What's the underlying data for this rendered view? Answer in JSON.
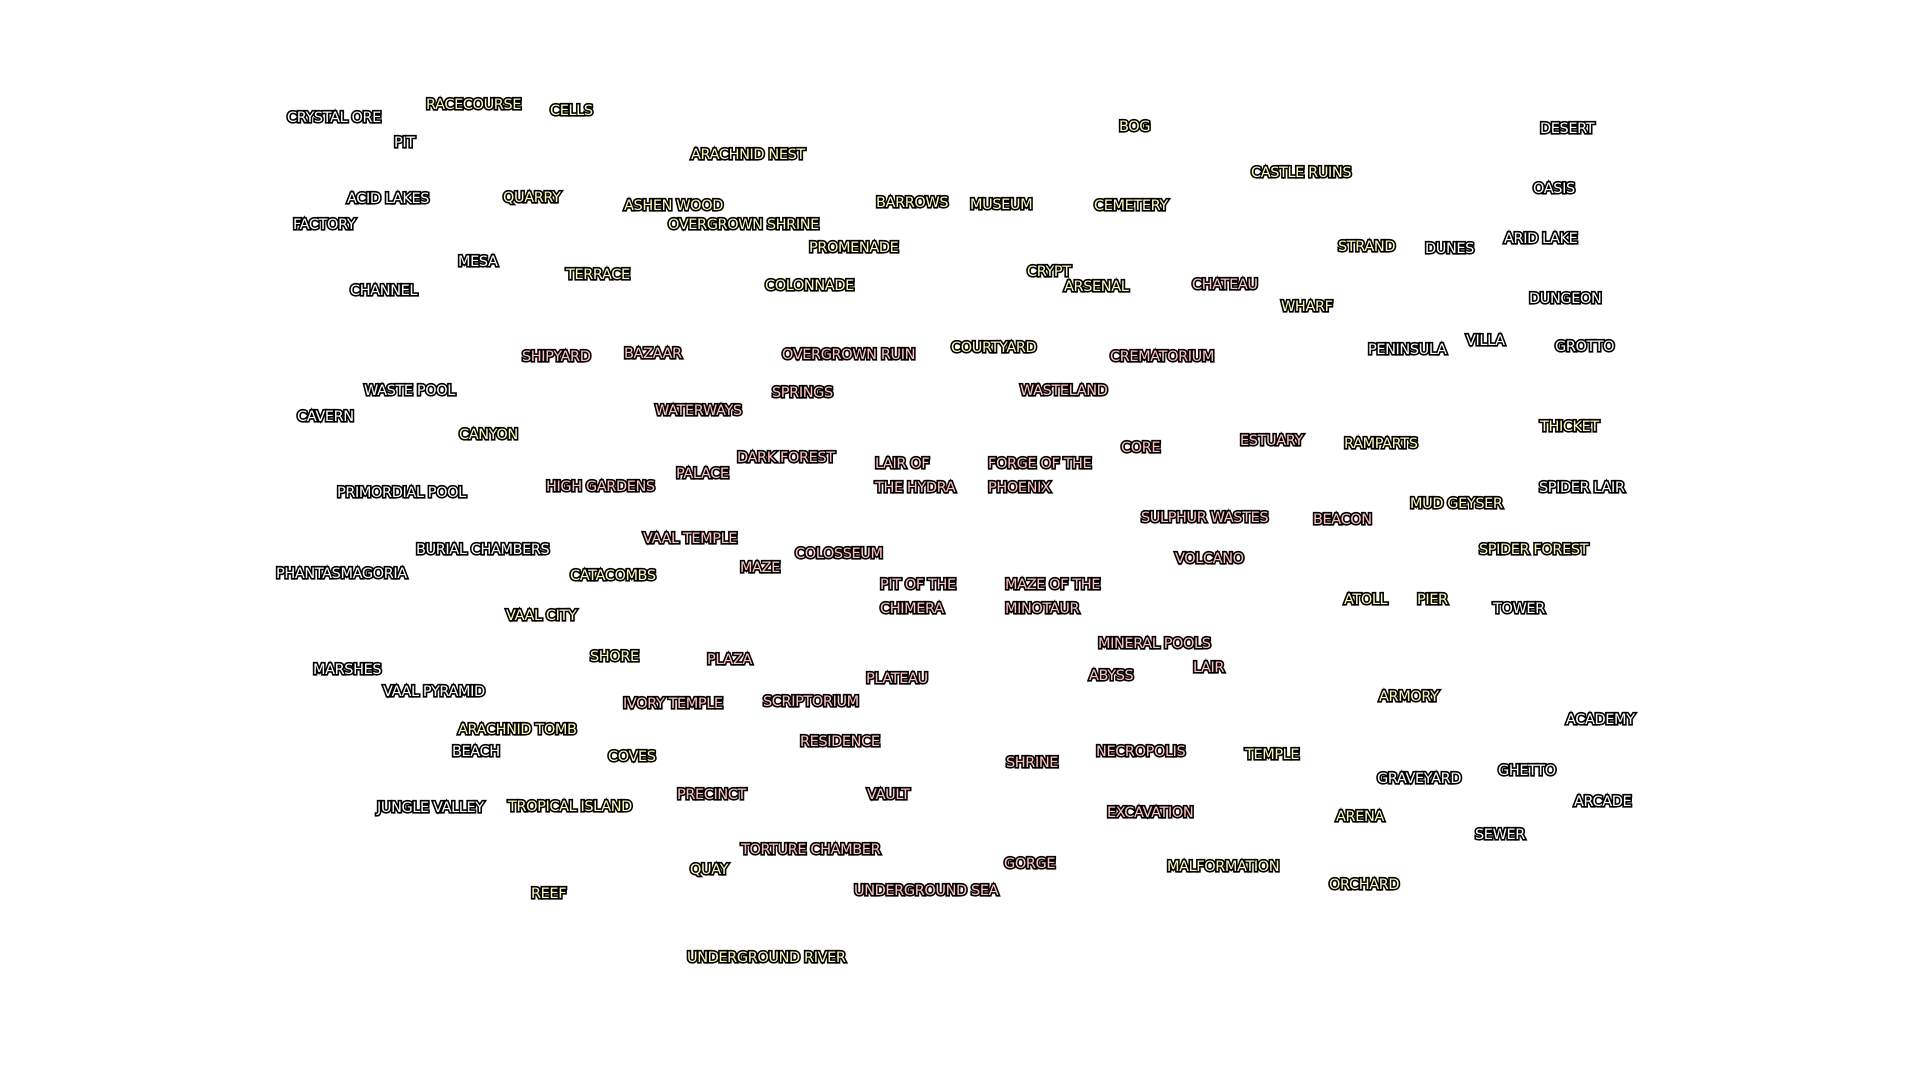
{
  "palette": {
    "tier_white": "#ffffff",
    "tier_yellow": "#fcfcbe",
    "tier_red": "#ffc4c4",
    "outline": "#000000",
    "background": "#ffffff"
  },
  "atlas": {
    "maps": [
      {
        "label": "CRYSTAL ORE",
        "tier": "white"
      },
      {
        "label": "RACECOURSE",
        "tier": "yellow"
      },
      {
        "label": "CELLS",
        "tier": "yellow"
      },
      {
        "label": "PIT",
        "tier": "white"
      },
      {
        "label": "ARACHNID NEST",
        "tier": "yellow"
      },
      {
        "label": "BOG",
        "tier": "yellow"
      },
      {
        "label": "DESERT",
        "tier": "white"
      },
      {
        "label": "ACID LAKES",
        "tier": "white"
      },
      {
        "label": "QUARRY",
        "tier": "yellow"
      },
      {
        "label": "ASHEN WOOD",
        "tier": "yellow"
      },
      {
        "label": "BARROWS",
        "tier": "yellow"
      },
      {
        "label": "MUSEUM",
        "tier": "yellow"
      },
      {
        "label": "CEMETERY",
        "tier": "yellow"
      },
      {
        "label": "CASTLE RUINS",
        "tier": "yellow"
      },
      {
        "label": "OASIS",
        "tier": "white"
      },
      {
        "label": "FACTORY",
        "tier": "white"
      },
      {
        "label": "OVERGROWN SHRINE",
        "tier": "yellow"
      },
      {
        "label": "PROMENADE",
        "tier": "yellow"
      },
      {
        "label": "STRAND",
        "tier": "yellow"
      },
      {
        "label": "DUNES",
        "tier": "white"
      },
      {
        "label": "ARID LAKE",
        "tier": "white"
      },
      {
        "label": "MESA",
        "tier": "white"
      },
      {
        "label": "TERRACE",
        "tier": "yellow"
      },
      {
        "label": "CRYPT",
        "tier": "yellow"
      },
      {
        "label": "CHANNEL",
        "tier": "white"
      },
      {
        "label": "COLONNADE",
        "tier": "yellow"
      },
      {
        "label": "ARSENAL",
        "tier": "yellow"
      },
      {
        "label": "CHATEAU",
        "tier": "red"
      },
      {
        "label": "DUNGEON",
        "tier": "white"
      },
      {
        "label": "WHARF",
        "tier": "yellow"
      },
      {
        "label": "VILLA",
        "tier": "white"
      },
      {
        "label": "COURTYARD",
        "tier": "yellow"
      },
      {
        "label": "GROTTO",
        "tier": "white"
      },
      {
        "label": "PENINSULA",
        "tier": "white"
      },
      {
        "label": "SHIPYARD",
        "tier": "red"
      },
      {
        "label": "BAZAAR",
        "tier": "red"
      },
      {
        "label": "OVERGROWN RUIN",
        "tier": "red"
      },
      {
        "label": "CREMATORIUM",
        "tier": "red"
      },
      {
        "label": "WASTE POOL",
        "tier": "white"
      },
      {
        "label": "SPRINGS",
        "tier": "red"
      },
      {
        "label": "WASTELAND",
        "tier": "red"
      },
      {
        "label": "CAVERN",
        "tier": "white"
      },
      {
        "label": "WATERWAYS",
        "tier": "red"
      },
      {
        "label": "THICKET",
        "tier": "yellow"
      },
      {
        "label": "CANYON",
        "tier": "yellow"
      },
      {
        "label": "ESTUARY",
        "tier": "red"
      },
      {
        "label": "RAMPARTS",
        "tier": "yellow"
      },
      {
        "label": "DARK FOREST",
        "tier": "red"
      },
      {
        "label": "CORE",
        "tier": "red"
      },
      {
        "label": "LAIR OF THE HYDRA",
        "line1": "LAIR OF",
        "line2": "THE HYDRA",
        "tier": "red"
      },
      {
        "label": "FORGE OF THE PHOENIX",
        "line1": "FORGE OF THE",
        "line2": "PHOENIX",
        "tier": "red"
      },
      {
        "label": "PALACE",
        "tier": "red"
      },
      {
        "label": "PRIMORDIAL POOL",
        "tier": "white"
      },
      {
        "label": "HIGH GARDENS",
        "tier": "red"
      },
      {
        "label": "SPIDER LAIR",
        "tier": "white"
      },
      {
        "label": "MUD GEYSER",
        "tier": "yellow"
      },
      {
        "label": "SULPHUR WASTES",
        "tier": "red"
      },
      {
        "label": "BEACON",
        "tier": "red"
      },
      {
        "label": "VAAL TEMPLE",
        "tier": "red"
      },
      {
        "label": "BURIAL CHAMBERS",
        "tier": "white"
      },
      {
        "label": "SPIDER FOREST",
        "tier": "yellow"
      },
      {
        "label": "COLOSSEUM",
        "tier": "red"
      },
      {
        "label": "VOLCANO",
        "tier": "red"
      },
      {
        "label": "PHANTASMAGORIA",
        "tier": "white"
      },
      {
        "label": "CATACOMBS",
        "tier": "yellow"
      },
      {
        "label": "MAZE",
        "tier": "red"
      },
      {
        "label": "PIT OF THE CHIMERA",
        "line1": "PIT OF THE",
        "line2": "CHIMERA",
        "tier": "red"
      },
      {
        "label": "MAZE OF THE MINOTAUR",
        "line1": "MAZE OF THE",
        "line2": "MINOTAUR",
        "tier": "red"
      },
      {
        "label": "ATOLL",
        "tier": "yellow"
      },
      {
        "label": "PIER",
        "tier": "yellow"
      },
      {
        "label": "TOWER",
        "tier": "white"
      },
      {
        "label": "VAAL CITY",
        "tier": "yellow"
      },
      {
        "label": "MINERAL POOLS",
        "tier": "red"
      },
      {
        "label": "SHORE",
        "tier": "yellow"
      },
      {
        "label": "PLAZA",
        "tier": "red"
      },
      {
        "label": "LAIR",
        "tier": "red"
      },
      {
        "label": "MARSHES",
        "tier": "white"
      },
      {
        "label": "ABYSS",
        "tier": "red"
      },
      {
        "label": "PLATEAU",
        "tier": "red"
      },
      {
        "label": "VAAL PYRAMID",
        "tier": "white"
      },
      {
        "label": "ARMORY",
        "tier": "yellow"
      },
      {
        "label": "IVORY TEMPLE",
        "tier": "red"
      },
      {
        "label": "SCRIPTORIUM",
        "tier": "red"
      },
      {
        "label": "ACADEMY",
        "tier": "white"
      },
      {
        "label": "ARACHNID TOMB",
        "tier": "yellow"
      },
      {
        "label": "RESIDENCE",
        "tier": "red"
      },
      {
        "label": "BEACH",
        "tier": "white"
      },
      {
        "label": "NECROPOLIS",
        "tier": "red"
      },
      {
        "label": "COVES",
        "tier": "yellow"
      },
      {
        "label": "TEMPLE",
        "tier": "yellow"
      },
      {
        "label": "SHRINE",
        "tier": "red"
      },
      {
        "label": "GHETTO",
        "tier": "white"
      },
      {
        "label": "GRAVEYARD",
        "tier": "white"
      },
      {
        "label": "PRECINCT",
        "tier": "red"
      },
      {
        "label": "VAULT",
        "tier": "red"
      },
      {
        "label": "ARCADE",
        "tier": "white"
      },
      {
        "label": "JUNGLE VALLEY",
        "tier": "white"
      },
      {
        "label": "TROPICAL ISLAND",
        "tier": "yellow"
      },
      {
        "label": "EXCAVATION",
        "tier": "red"
      },
      {
        "label": "ARENA",
        "tier": "yellow"
      },
      {
        "label": "SEWER",
        "tier": "white"
      },
      {
        "label": "TORTURE CHAMBER",
        "tier": "red"
      },
      {
        "label": "GORGE",
        "tier": "red"
      },
      {
        "label": "MALFORMATION",
        "tier": "yellow"
      },
      {
        "label": "QUAY",
        "tier": "yellow"
      },
      {
        "label": "UNDERGROUND SEA",
        "tier": "red"
      },
      {
        "label": "ORCHARD",
        "tier": "yellow"
      },
      {
        "label": "REEF",
        "tier": "yellow"
      },
      {
        "label": "UNDERGROUND RIVER",
        "tier": "yellow"
      }
    ]
  }
}
